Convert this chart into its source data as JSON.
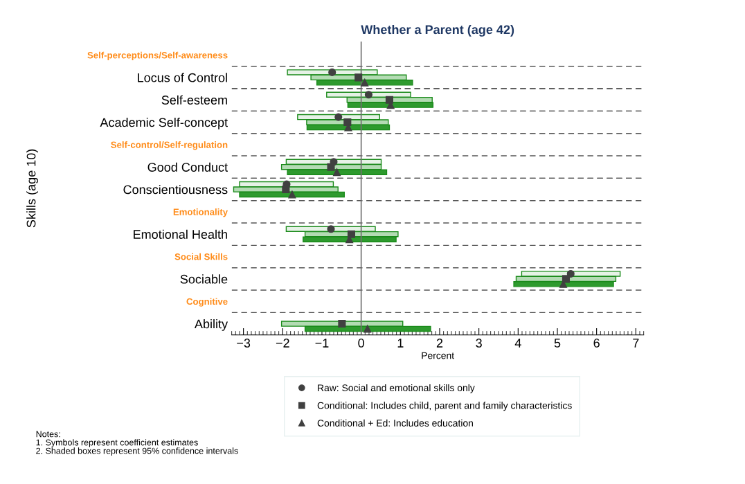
{
  "chart_data": {
    "type": "bar",
    "orientation": "horizontal",
    "title": "Whether a Parent (age 42)",
    "xlabel": "Percent",
    "ylabel": "Skills (age 10)",
    "categories": [
      "Self-perceptions/Self-awareness",
      "Locus of Control",
      "Self-esteem",
      "Academic Self-concept",
      "Self-control/Self-regulation",
      "Good Conduct",
      "Conscientiousness",
      "Emotionality",
      "Emotional Health",
      "Social Skills",
      "Sociable",
      "Cognitive",
      "Ability"
    ],
    "series": [
      {
        "color": "#e6f2e6",
        "base": [
          null,
          -1.88,
          -0.88,
          -1.62,
          null,
          -1.91,
          -3.1,
          null,
          -1.91,
          null,
          4.09,
          null,
          null
        ],
        "values": [
          null,
          2.29,
          2.14,
          2.09,
          null,
          2.42,
          2.39,
          null,
          2.27,
          null,
          2.51,
          null,
          null
        ]
      },
      {
        "color": "#b3dbb3",
        "base": [
          null,
          -1.28,
          -0.36,
          -1.39,
          null,
          -2.03,
          -3.25,
          null,
          -1.43,
          null,
          3.95,
          null,
          -2.03
        ],
        "values": [
          null,
          2.43,
          2.17,
          2.08,
          null,
          2.54,
          2.66,
          null,
          2.37,
          null,
          2.54,
          null,
          3.09
        ]
      },
      {
        "color": "#2e9a2e",
        "base": [
          null,
          -1.13,
          -0.34,
          -1.38,
          null,
          -1.88,
          -3.1,
          null,
          -1.48,
          null,
          3.89,
          null,
          -1.43
        ],
        "values": [
          null,
          2.44,
          2.17,
          2.1,
          null,
          2.53,
          2.67,
          null,
          2.37,
          null,
          2.54,
          null,
          3.2
        ]
      },
      {
        "type": "scatter",
        "name": "Raw: Social and emotional skills only",
        "color": "#404040",
        "marker": "circle",
        "values": [
          null,
          -0.74,
          0.19,
          -0.58,
          null,
          -0.7,
          -1.9,
          null,
          -0.77,
          null,
          5.34,
          null,
          null
        ]
      },
      {
        "type": "scatter",
        "name": "Conditional: Includes child, parent and family characteristics",
        "color": "#404040",
        "marker": "square",
        "values": [
          null,
          -0.07,
          0.72,
          -0.35,
          null,
          -0.77,
          -1.92,
          null,
          -0.25,
          null,
          5.22,
          null,
          -0.49
        ]
      },
      {
        "type": "scatter",
        "name": "Conditional + Ed: Includes education",
        "color": "#404040",
        "marker": "triangle",
        "values": [
          null,
          0.09,
          0.75,
          -0.33,
          null,
          -0.62,
          -1.76,
          null,
          -0.3,
          null,
          5.15,
          null,
          0.16
        ]
      }
    ],
    "xlim": [
      -3.3,
      7.2
    ],
    "xticks": [
      {
        "value": -3,
        "label": "−3"
      },
      {
        "value": -2,
        "label": "−2"
      },
      {
        "value": -1,
        "label": "−1"
      },
      0,
      1,
      2,
      3,
      4,
      5,
      6,
      7
    ],
    "ref_lines": [
      {
        "axis": "x",
        "value": 0,
        "color": "#707070"
      }
    ],
    "grid": "y",
    "legend": "bottom",
    "annotations": [
      "Notes:\n1. Symbols represent coefficient estimates\n2. Shaded boxes represent 95% confidence intervals"
    ]
  }
}
